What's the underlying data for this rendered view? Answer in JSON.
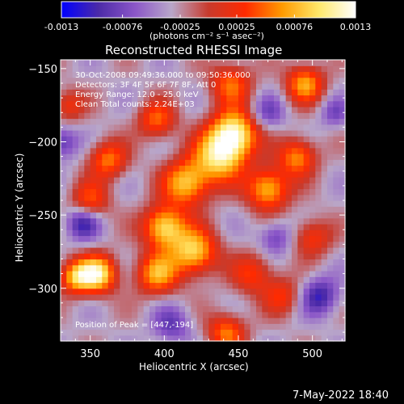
{
  "colorbar": {
    "ticks": [
      "-0.0013",
      "-0.00076",
      "-0.00025",
      "0.00025",
      "0.00076",
      "0.0013"
    ],
    "tick_values": [
      -0.0013,
      -0.00076,
      -0.00025,
      0.00025,
      0.00076,
      0.0013
    ],
    "range": [
      -0.0013,
      0.0013
    ],
    "unit_label": "(photons cm⁻² s⁻¹ asec⁻²)",
    "colors": [
      "#0000ff",
      "#4b2aa8",
      "#8b56c8",
      "#b9a7c9",
      "#c83a2c",
      "#ff2a00",
      "#ff9a00",
      "#ffe86a",
      "#ffffff"
    ]
  },
  "chart_data": {
    "type": "heatmap",
    "title": "Reconstructed RHESSI Image",
    "xlabel": "Heliocentric X (arcsec)",
    "ylabel": "Heliocentric Y (arcsec)",
    "xlim": [
      330,
      522
    ],
    "ylim": [
      -336,
      -144
    ],
    "x_ticks": [
      350,
      400,
      450,
      500
    ],
    "y_ticks": [
      -150,
      -200,
      -250,
      -300
    ],
    "y_tick_labels": [
      "−150",
      "−200",
      "−250",
      "−300"
    ],
    "annotations": [
      "30-Oct-2008 09:49:36.000 to 09:50:36.000",
      "Detectors: 3F 4F 5F 6F 7F 8F, Att 0",
      "Energy Range: 12.0 - 25.0 keV",
      "Clean     Total counts: 2.24E+03"
    ],
    "peak_label": "Position of Peak = [447,-194]",
    "peak": [
      447,
      -194
    ],
    "sources": [
      {
        "x": 447,
        "y": -194,
        "amp": 1.0,
        "sigma": 11
      },
      {
        "x": 437,
        "y": -210,
        "amp": 0.85,
        "sigma": 12
      },
      {
        "x": 415,
        "y": -228,
        "amp": 0.8,
        "sigma": 11
      },
      {
        "x": 400,
        "y": -258,
        "amp": 0.9,
        "sigma": 10
      },
      {
        "x": 420,
        "y": -275,
        "amp": 0.85,
        "sigma": 11
      },
      {
        "x": 395,
        "y": -290,
        "amp": 0.7,
        "sigma": 10
      },
      {
        "x": 355,
        "y": -290,
        "amp": 0.95,
        "sigma": 9
      },
      {
        "x": 340,
        "y": -292,
        "amp": 0.7,
        "sigma": 8
      },
      {
        "x": 470,
        "y": -232,
        "amp": 0.8,
        "sigma": 10
      },
      {
        "x": 490,
        "y": -210,
        "amp": 0.65,
        "sigma": 9
      },
      {
        "x": 495,
        "y": -160,
        "amp": 0.7,
        "sigma": 9
      },
      {
        "x": 445,
        "y": -160,
        "amp": 0.55,
        "sigma": 10
      },
      {
        "x": 362,
        "y": -212,
        "amp": 0.6,
        "sigma": 9
      },
      {
        "x": 395,
        "y": -185,
        "amp": 0.55,
        "sigma": 9
      },
      {
        "x": 460,
        "y": -290,
        "amp": 0.45,
        "sigma": 10
      },
      {
        "x": 500,
        "y": -265,
        "amp": 0.45,
        "sigma": 9
      },
      {
        "x": 442,
        "y": -330,
        "amp": 0.6,
        "sigma": 9
      },
      {
        "x": 350,
        "y": -240,
        "amp": 0.5,
        "sigma": 9
      },
      {
        "x": 480,
        "y": -305,
        "amp": 0.4,
        "sigma": 9
      },
      {
        "x": 335,
        "y": -175,
        "amp": 0.4,
        "sigma": 8
      }
    ],
    "negatives": [
      {
        "x": 345,
        "y": -255,
        "amp": 0.7,
        "sigma": 8
      },
      {
        "x": 330,
        "y": -200,
        "amp": 0.6,
        "sigma": 8
      },
      {
        "x": 505,
        "y": -305,
        "amp": 0.7,
        "sigma": 9
      },
      {
        "x": 475,
        "y": -265,
        "amp": 0.5,
        "sigma": 8
      },
      {
        "x": 515,
        "y": -180,
        "amp": 0.4,
        "sigma": 7
      },
      {
        "x": 405,
        "y": -325,
        "amp": 0.5,
        "sigma": 9
      },
      {
        "x": 470,
        "y": -180,
        "amp": 0.45,
        "sigma": 8
      }
    ]
  },
  "footer": {
    "date": "7-May-2022 18:40"
  }
}
